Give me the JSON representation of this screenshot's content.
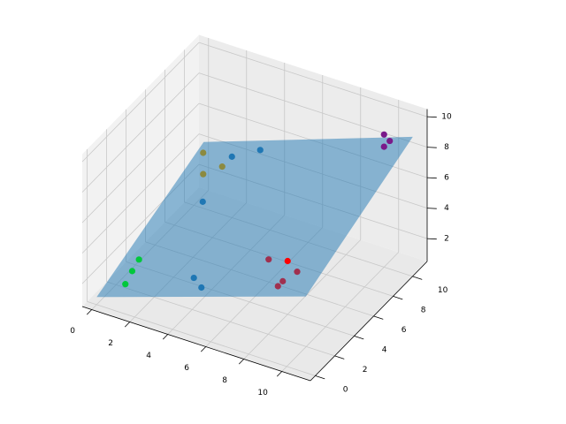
{
  "chart_data": {
    "type": "scatter3d",
    "xlim": [
      -0.5,
      11.5
    ],
    "ylim": [
      -0.5,
      11.5
    ],
    "zlim": [
      0.5,
      10.5
    ],
    "xticks": [
      0,
      2,
      4,
      6,
      8,
      10
    ],
    "yticks": [
      0,
      2,
      4,
      6,
      8,
      10
    ],
    "zticks": [
      2,
      4,
      6,
      8,
      10
    ],
    "grid": true,
    "plane": {
      "color": "#1f77b4",
      "x": [
        0,
        11,
        11,
        0
      ],
      "y": [
        0,
        0,
        11,
        11
      ],
      "z": [
        1,
        5.5,
        8.8,
        4
      ]
    },
    "series": [
      {
        "color": "#00c83c",
        "x": [
          1,
          1,
          1
        ],
        "y": [
          2.4,
          1.7,
          1
        ],
        "z": [
          2.3,
          2,
          1.6
        ]
      },
      {
        "color": "#1f77b4",
        "x": [
          5,
          4.5,
          2,
          4,
          2
        ],
        "y": [
          1,
          1.2,
          7,
          9,
          10
        ],
        "z": [
          3,
          3.3,
          3.5,
          6.4,
          4.5
        ]
      },
      {
        "color": "#8c8a40",
        "x": [
          1,
          2,
          1
        ],
        "y": [
          9,
          9,
          9
        ],
        "z": [
          5,
          4.5,
          3.6
        ]
      },
      {
        "color": "#a0304f",
        "x": [
          7,
          8.5,
          8,
          8
        ],
        "y": [
          4,
          4,
          3.5,
          3
        ],
        "z": [
          3.7,
          3.5,
          3,
          3
        ]
      },
      {
        "color": "#ff0000",
        "x": [
          8
        ],
        "y": [
          4
        ],
        "z": [
          4
        ]
      },
      {
        "color": "#7a1a8a",
        "x": [
          10,
          10.3,
          10
        ],
        "y": [
          10,
          10,
          10
        ],
        "z": [
          9.2,
          8.9,
          8.4
        ]
      }
    ]
  }
}
